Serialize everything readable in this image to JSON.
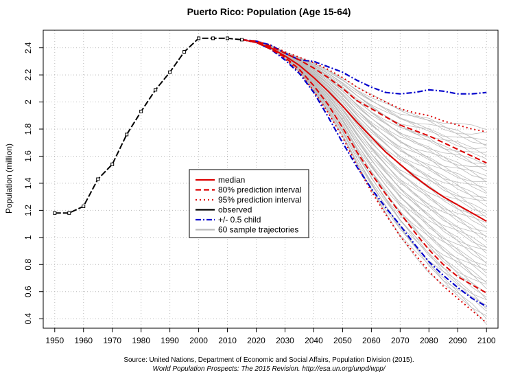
{
  "chart_data": {
    "type": "line",
    "title": "Puerto Rico: Population (Age 15-64)",
    "xlabel": "",
    "ylabel": "Population (million)",
    "xlim": [
      1946,
      2104
    ],
    "ylim": [
      0.33,
      2.53
    ],
    "xticks": [
      1950,
      1960,
      1970,
      1980,
      1990,
      2000,
      2010,
      2020,
      2030,
      2040,
      2050,
      2060,
      2070,
      2080,
      2090,
      2100
    ],
    "yticks": [
      0.4,
      0.6,
      0.8,
      1,
      1.2,
      1.4,
      1.6,
      1.8,
      2,
      2.2,
      2.4
    ],
    "grid": true,
    "legend_position": "center",
    "legend": [
      {
        "label": "median",
        "color": "#dd0000",
        "dash": "solid"
      },
      {
        "label": "80% prediction interval",
        "color": "#dd0000",
        "dash": "dashed"
      },
      {
        "label": "95% prediction interval",
        "color": "#dd0000",
        "dash": "dotted"
      },
      {
        "label": "observed",
        "color": "#000000",
        "dash": "solid"
      },
      {
        "label": "+/- 0.5 child",
        "color": "#0000cc",
        "dash": "dashdot"
      },
      {
        "label": "60 sample trajectories",
        "color": "#bbbbbb",
        "dash": "solid"
      }
    ],
    "observed": {
      "x": [
        1950,
        1955,
        1960,
        1965,
        1970,
        1975,
        1980,
        1985,
        1990,
        1995,
        2000,
        2005,
        2010,
        2015
      ],
      "y": [
        1.18,
        1.18,
        1.23,
        1.43,
        1.54,
        1.76,
        1.93,
        2.09,
        2.22,
        2.37,
        2.47,
        2.47,
        2.47,
        2.46
      ]
    },
    "x_proj": [
      2015,
      2020,
      2025,
      2030,
      2035,
      2040,
      2045,
      2050,
      2055,
      2060,
      2065,
      2070,
      2075,
      2080,
      2085,
      2090,
      2095,
      2100
    ],
    "median": [
      2.46,
      2.44,
      2.4,
      2.34,
      2.27,
      2.18,
      2.08,
      1.97,
      1.85,
      1.74,
      1.63,
      1.54,
      1.45,
      1.37,
      1.3,
      1.24,
      1.18,
      1.12
    ],
    "pi80_upper": [
      2.46,
      2.45,
      2.41,
      2.36,
      2.31,
      2.25,
      2.18,
      2.1,
      2.01,
      1.95,
      1.89,
      1.83,
      1.79,
      1.75,
      1.7,
      1.65,
      1.6,
      1.55
    ],
    "pi80_lower": [
      2.46,
      2.44,
      2.39,
      2.33,
      2.24,
      2.12,
      1.98,
      1.81,
      1.63,
      1.47,
      1.32,
      1.18,
      1.04,
      0.91,
      0.8,
      0.71,
      0.65,
      0.59
    ],
    "pi95_upper": [
      2.46,
      2.45,
      2.42,
      2.37,
      2.33,
      2.29,
      2.24,
      2.18,
      2.11,
      2.05,
      2.0,
      1.95,
      1.92,
      1.9,
      1.86,
      1.83,
      1.8,
      1.78
    ],
    "pi95_lower": [
      2.46,
      2.44,
      2.39,
      2.32,
      2.22,
      2.08,
      1.92,
      1.74,
      1.53,
      1.34,
      1.17,
      1.01,
      0.88,
      0.75,
      0.64,
      0.55,
      0.46,
      0.37
    ],
    "child_plus": [
      2.46,
      2.45,
      2.42,
      2.36,
      2.31,
      2.3,
      2.26,
      2.22,
      2.16,
      2.11,
      2.07,
      2.06,
      2.07,
      2.09,
      2.08,
      2.06,
      2.06,
      2.07
    ],
    "child_minus": [
      2.46,
      2.44,
      2.39,
      2.31,
      2.21,
      2.07,
      1.89,
      1.7,
      1.52,
      1.36,
      1.22,
      1.09,
      0.95,
      0.82,
      0.72,
      0.63,
      0.55,
      0.49
    ],
    "source_line1": "Source: United Nations, Department of Economic and Social Affairs, Population Division (2015).",
    "source_line2": "World Population Prospects: The 2015 Revision. http://esa.un.org/unpd/wpp/"
  },
  "colors": {
    "median": "#dd0000",
    "observed": "#000000",
    "child": "#0000cc",
    "trajectories": "#bbbbbb",
    "grid": "#bbbbbb"
  }
}
